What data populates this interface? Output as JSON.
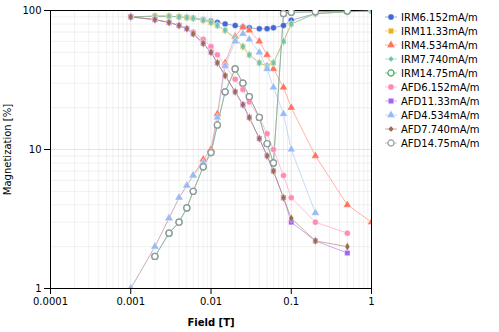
{
  "chart_data": {
    "type": "line",
    "xlabel": "Field [T]",
    "ylabel": "Magnetization [%]",
    "log": true,
    "grid": true,
    "legend": "upper right",
    "xlim": [
      0.0001,
      1.0
    ],
    "ylim": [
      1,
      100
    ],
    "xticks": [
      0.0001,
      0.001,
      0.01,
      0.1,
      1
    ],
    "yticks": [
      1,
      10,
      100
    ],
    "series": [
      {
        "name": "IRM6.152mA/m",
        "marker": "circle",
        "x": [
          0.001,
          0.002,
          0.003,
          0.004,
          0.005,
          0.006,
          0.008,
          0.01,
          0.012,
          0.015,
          0.02,
          0.025,
          0.03,
          0.04,
          0.05,
          0.06,
          0.08,
          0.1,
          0.2,
          0.5,
          1.0
        ],
        "values": [
          90,
          91,
          91,
          90,
          89,
          88,
          86,
          84,
          82,
          80,
          78,
          76,
          75,
          74,
          74,
          75,
          78,
          85,
          95,
          98,
          99
        ]
      },
      {
        "name": "IRM11.33mA/m",
        "marker": "square",
        "x": [
          0.001,
          0.002,
          0.003,
          0.004,
          0.005,
          0.006,
          0.008,
          0.01,
          0.012,
          0.015,
          0.02,
          0.025,
          0.03,
          0.04,
          0.05,
          0.06,
          0.08,
          0.1,
          0.2,
          0.5,
          1.0
        ],
        "values": [
          90,
          91,
          91,
          90,
          89,
          88,
          85,
          82,
          78,
          72,
          63,
          55,
          48,
          42,
          40,
          42,
          60,
          80,
          95,
          98,
          99
        ]
      },
      {
        "name": "IRM4.534mA/m",
        "marker": "triangle",
        "x": [
          0.001,
          0.002,
          0.003,
          0.004,
          0.005,
          0.006,
          0.008,
          0.01,
          0.012,
          0.015,
          0.02,
          0.025,
          0.03,
          0.04,
          0.05,
          0.06,
          0.08,
          0.1,
          0.2,
          0.5,
          1.0
        ],
        "values": [
          1.0,
          2.0,
          3.2,
          4.5,
          5.5,
          6.5,
          8.5,
          10,
          18,
          42,
          65,
          76,
          72,
          60,
          48,
          38,
          28,
          20,
          9,
          4,
          3.0
        ]
      },
      {
        "name": "IRM7.740mA/m",
        "marker": "diamond",
        "x": [
          0.001,
          0.002,
          0.003,
          0.004,
          0.005,
          0.006,
          0.008,
          0.01,
          0.012,
          0.015,
          0.02,
          0.025,
          0.03,
          0.04,
          0.05,
          0.06,
          0.08,
          0.1,
          0.2,
          0.5,
          1.0
        ],
        "values": [
          90,
          91,
          91,
          90,
          89,
          88,
          85,
          82,
          78,
          72,
          63,
          55,
          48,
          42,
          40,
          42,
          60,
          80,
          95,
          98,
          99
        ]
      },
      {
        "name": "IRM14.75mA/m",
        "marker": "open-circle",
        "x": [
          0.002,
          0.003,
          0.004,
          0.005,
          0.006,
          0.008,
          0.01,
          0.012,
          0.015,
          0.02,
          0.025,
          0.03,
          0.04,
          0.05,
          0.06,
          0.08,
          0.1,
          0.2,
          0.5
        ],
        "values": [
          1.7,
          2.5,
          3.0,
          3.8,
          5.0,
          7.5,
          9.5,
          15,
          26,
          38,
          30,
          24,
          17,
          11,
          8,
          95,
          97,
          98,
          99
        ]
      },
      {
        "name": "AFD6.152mA/m",
        "marker": "circle",
        "x": [
          0.001,
          0.002,
          0.003,
          0.004,
          0.005,
          0.006,
          0.008,
          0.01,
          0.012,
          0.015,
          0.02,
          0.025,
          0.03,
          0.04,
          0.05,
          0.06,
          0.08,
          0.1,
          0.2,
          0.5
        ],
        "values": [
          90,
          86,
          82,
          78,
          74,
          70,
          62,
          55,
          48,
          40,
          32,
          27,
          22,
          17,
          13,
          10,
          6.5,
          4.5,
          3.0,
          2.5
        ]
      },
      {
        "name": "AFD11.33mA/m",
        "marker": "square",
        "x": [
          0.001,
          0.002,
          0.003,
          0.004,
          0.005,
          0.006,
          0.008,
          0.01,
          0.012,
          0.015,
          0.02,
          0.025,
          0.03,
          0.04,
          0.05,
          0.06,
          0.08,
          0.1,
          0.2,
          0.5
        ],
        "values": [
          90,
          86,
          82,
          78,
          74,
          68,
          58,
          50,
          42,
          34,
          26,
          21,
          17,
          12,
          9,
          7,
          4.5,
          3.0,
          2.2,
          1.8
        ]
      },
      {
        "name": "AFD4.534mA/m",
        "marker": "triangle",
        "x": [
          0.001,
          0.002,
          0.003,
          0.004,
          0.005,
          0.006,
          0.008,
          0.01,
          0.012,
          0.015,
          0.02,
          0.025,
          0.03,
          0.04,
          0.05,
          0.06,
          0.08,
          0.1,
          0.2
        ],
        "values": [
          1.0,
          2.0,
          3.2,
          4.5,
          5.5,
          6.5,
          8.0,
          9.5,
          17,
          40,
          60,
          68,
          62,
          50,
          38,
          28,
          18,
          10,
          3.5
        ]
      },
      {
        "name": "AFD7.740mA/m",
        "marker": "diamond",
        "x": [
          0.001,
          0.002,
          0.003,
          0.004,
          0.005,
          0.006,
          0.008,
          0.01,
          0.012,
          0.015,
          0.02,
          0.025,
          0.03,
          0.04,
          0.05,
          0.06,
          0.08,
          0.1,
          0.2,
          0.5
        ],
        "values": [
          90,
          86,
          82,
          78,
          74,
          68,
          58,
          50,
          42,
          34,
          26,
          21,
          17,
          12,
          9,
          7,
          4.5,
          3.2,
          2.2,
          2.0
        ]
      },
      {
        "name": "AFD14.75mA/m",
        "marker": "open-circle",
        "x": [
          0.002,
          0.003,
          0.004,
          0.005,
          0.006,
          0.008,
          0.01,
          0.012,
          0.015,
          0.02,
          0.025,
          0.03,
          0.04,
          0.05,
          0.06,
          0.08,
          0.1,
          0.2,
          0.5
        ],
        "values": [
          1.7,
          2.5,
          3.0,
          3.8,
          5.0,
          7.5,
          9.5,
          15,
          26,
          38,
          30,
          24,
          17,
          11,
          8,
          95,
          97,
          98,
          99
        ]
      }
    ]
  }
}
